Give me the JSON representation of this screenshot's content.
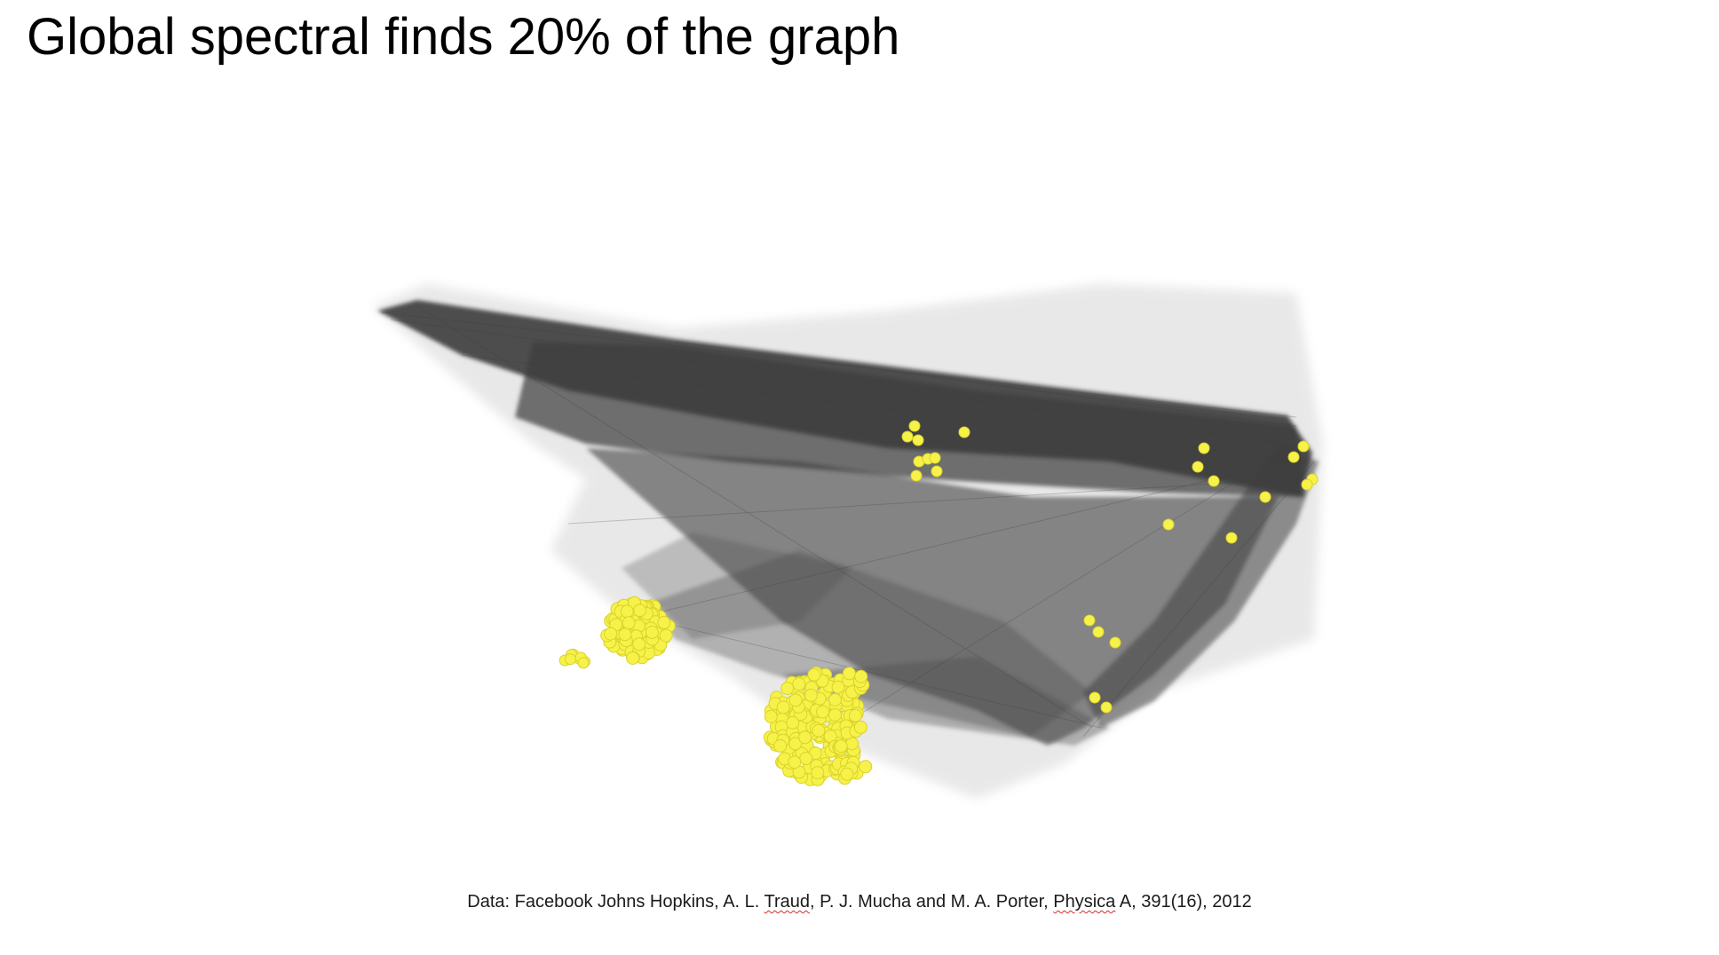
{
  "slide": {
    "title": "Global spectral finds 20% of the graph"
  },
  "citation": {
    "prefix": "Data: Facebook Johns Hopkins, A. L. ",
    "author_flagged": "Traud",
    "middle": ", P. J. Mucha and M. A. Porter, ",
    "journal_flagged": "Physica",
    "suffix": " A, 391(16), 2012"
  },
  "colors": {
    "background": "#ffffff",
    "edges": "#3f3f3f",
    "highlighted_nodes": "#f7f24a",
    "node_outline": "#d9d22a",
    "spellcheck_underline": "#d62b2b"
  },
  "figure": {
    "kind": "network-graph-visualization",
    "highlighted_fraction_label": "20%"
  }
}
